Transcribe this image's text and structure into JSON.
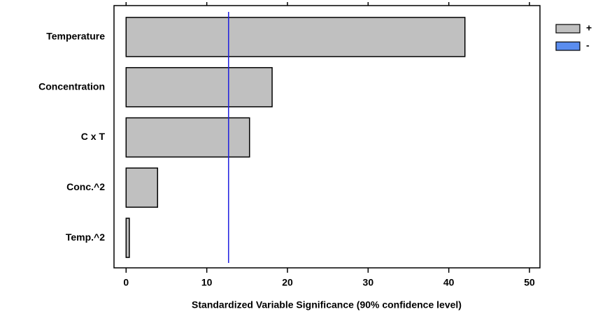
{
  "chart_data": {
    "type": "bar",
    "orientation": "horizontal",
    "categories": [
      "Temperature",
      "Concentration",
      "C x T",
      "Conc.^2",
      "Temp.^2"
    ],
    "series": [
      {
        "name": "+",
        "color": "#c0c0c0",
        "values": [
          42.0,
          18.1,
          15.3,
          3.9,
          0.4
        ]
      },
      {
        "name": "-",
        "color": "#5b8def",
        "values": [
          null,
          null,
          null,
          null,
          null
        ]
      }
    ],
    "reference_line": {
      "value": 12.7,
      "color": "#1f1fe0"
    },
    "xlabel": "Standardized Variable Significance (90% confidence level)",
    "xlim": [
      -1.5,
      51.3
    ],
    "xticks": [
      0,
      10,
      20,
      30,
      40,
      50
    ],
    "grid": false
  }
}
